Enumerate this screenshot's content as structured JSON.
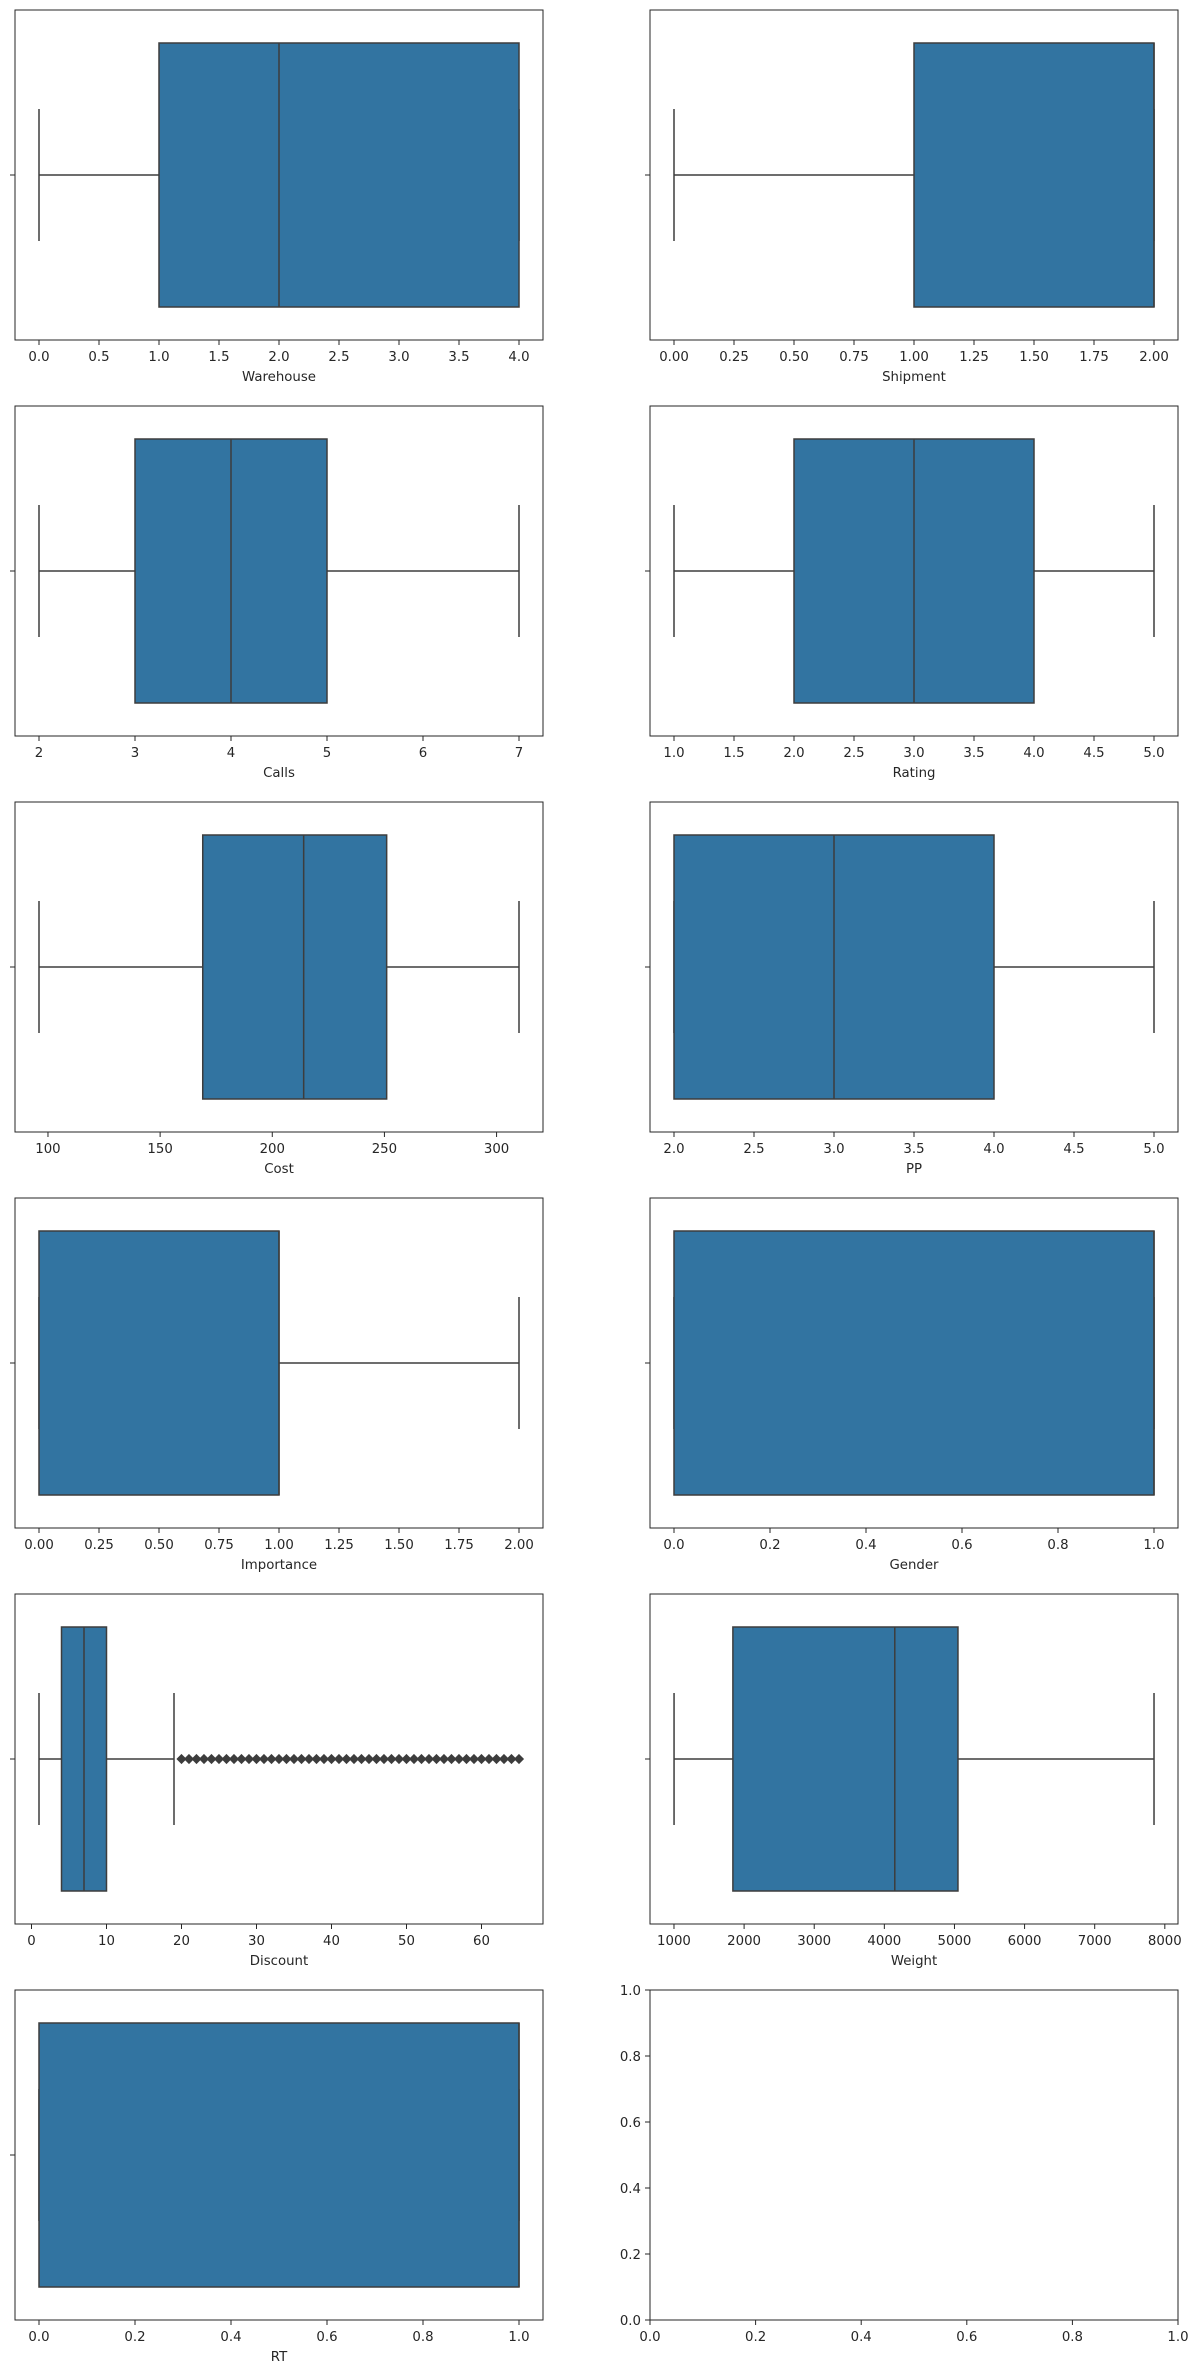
{
  "chart_data": [
    {
      "type": "box",
      "xlabel": "Warehouse",
      "xlim": [
        -0.2,
        4.2
      ],
      "ticks": [
        "0.0",
        "0.5",
        "1.0",
        "1.5",
        "2.0",
        "2.5",
        "3.0",
        "3.5",
        "4.0"
      ],
      "tick_values": [
        0,
        0.5,
        1,
        1.5,
        2,
        2.5,
        3,
        3.5,
        4
      ],
      "whisker_low": 0,
      "q1": 1,
      "median": 2,
      "q3": 4,
      "whisker_high": 4,
      "outliers": []
    },
    {
      "type": "box",
      "xlabel": "Shipment",
      "xlim": [
        -0.1,
        2.1
      ],
      "ticks": [
        "0.00",
        "0.25",
        "0.50",
        "0.75",
        "1.00",
        "1.25",
        "1.50",
        "1.75",
        "2.00"
      ],
      "tick_values": [
        0,
        0.25,
        0.5,
        0.75,
        1,
        1.25,
        1.5,
        1.75,
        2
      ],
      "whisker_low": 0,
      "q1": 1,
      "median": 2,
      "q3": 2,
      "whisker_high": 2,
      "outliers": []
    },
    {
      "type": "box",
      "xlabel": "Calls",
      "xlim": [
        1.75,
        7.25
      ],
      "ticks": [
        "2",
        "3",
        "4",
        "5",
        "6",
        "7"
      ],
      "tick_values": [
        2,
        3,
        4,
        5,
        6,
        7
      ],
      "whisker_low": 2,
      "q1": 3,
      "median": 4,
      "q3": 5,
      "whisker_high": 7,
      "outliers": []
    },
    {
      "type": "box",
      "xlabel": "Rating",
      "xlim": [
        0.8,
        5.2
      ],
      "ticks": [
        "1.0",
        "1.5",
        "2.0",
        "2.5",
        "3.0",
        "3.5",
        "4.0",
        "4.5",
        "5.0"
      ],
      "tick_values": [
        1,
        1.5,
        2,
        2.5,
        3,
        3.5,
        4,
        4.5,
        5
      ],
      "whisker_low": 1,
      "q1": 2,
      "median": 3,
      "q3": 4,
      "whisker_high": 5,
      "outliers": []
    },
    {
      "type": "box",
      "xlabel": "Cost",
      "xlim": [
        85.3,
        320.7
      ],
      "ticks": [
        "100",
        "150",
        "200",
        "250",
        "300"
      ],
      "tick_values": [
        100,
        150,
        200,
        250,
        300
      ],
      "whisker_low": 96,
      "q1": 169,
      "median": 214,
      "q3": 251,
      "whisker_high": 310,
      "outliers": []
    },
    {
      "type": "box",
      "xlabel": "PP",
      "xlim": [
        1.85,
        5.15
      ],
      "ticks": [
        "2.0",
        "2.5",
        "3.0",
        "3.5",
        "4.0",
        "4.5",
        "5.0"
      ],
      "tick_values": [
        2,
        2.5,
        3,
        3.5,
        4,
        4.5,
        5
      ],
      "whisker_low": 2,
      "q1": 2,
      "median": 3,
      "q3": 4,
      "whisker_high": 5,
      "outliers": []
    },
    {
      "type": "box",
      "xlabel": "Importance",
      "xlim": [
        -0.1,
        2.1
      ],
      "ticks": [
        "0.00",
        "0.25",
        "0.50",
        "0.75",
        "1.00",
        "1.25",
        "1.50",
        "1.75",
        "2.00"
      ],
      "tick_values": [
        0,
        0.25,
        0.5,
        0.75,
        1,
        1.25,
        1.5,
        1.75,
        2
      ],
      "whisker_low": 0,
      "q1": 0,
      "median": 1,
      "q3": 1,
      "whisker_high": 2,
      "outliers": []
    },
    {
      "type": "box",
      "xlabel": "Gender",
      "xlim": [
        -0.05,
        1.05
      ],
      "ticks": [
        "0.0",
        "0.2",
        "0.4",
        "0.6",
        "0.8",
        "1.0"
      ],
      "tick_values": [
        0,
        0.2,
        0.4,
        0.6,
        0.8,
        1
      ],
      "whisker_low": 0,
      "q1": 0,
      "median": 1,
      "q3": 1,
      "whisker_high": 1,
      "outliers": []
    },
    {
      "type": "box",
      "xlabel": "Discount",
      "xlim": [
        -2.2,
        68.2
      ],
      "ticks": [
        "0",
        "10",
        "20",
        "30",
        "40",
        "50",
        "60"
      ],
      "tick_values": [
        0,
        10,
        20,
        30,
        40,
        50,
        60
      ],
      "whisker_low": 1,
      "q1": 4,
      "median": 7,
      "q3": 10,
      "whisker_high": 19,
      "outliers": [
        20,
        21,
        22,
        23,
        24,
        25,
        26,
        27,
        28,
        29,
        30,
        31,
        32,
        33,
        34,
        35,
        36,
        37,
        38,
        39,
        40,
        41,
        42,
        43,
        44,
        45,
        46,
        47,
        48,
        49,
        50,
        51,
        52,
        53,
        54,
        55,
        56,
        57,
        58,
        59,
        60,
        61,
        62,
        63,
        64,
        65
      ]
    },
    {
      "type": "box",
      "xlabel": "Weight",
      "xlim": [
        658,
        8188
      ],
      "ticks": [
        "1000",
        "2000",
        "3000",
        "4000",
        "5000",
        "6000",
        "7000",
        "8000"
      ],
      "tick_values": [
        1000,
        2000,
        3000,
        4000,
        5000,
        6000,
        7000,
        8000
      ],
      "whisker_low": 1001,
      "q1": 1840,
      "median": 4149,
      "q3": 5050,
      "whisker_high": 7846,
      "outliers": []
    },
    {
      "type": "box",
      "xlabel": "RT",
      "xlim": [
        -0.05,
        1.05
      ],
      "ticks": [
        "0.0",
        "0.2",
        "0.4",
        "0.6",
        "0.8",
        "1.0"
      ],
      "tick_values": [
        0,
        0.2,
        0.4,
        0.6,
        0.8,
        1
      ],
      "whisker_low": 0,
      "q1": 0,
      "median": 1,
      "q3": 1,
      "whisker_high": 1,
      "outliers": []
    },
    {
      "type": "empty",
      "xlabel": "",
      "xlim": [
        0,
        1
      ],
      "ylim": [
        0,
        1
      ],
      "ticks": [
        "0.0",
        "0.2",
        "0.4",
        "0.6",
        "0.8",
        "1.0"
      ],
      "tick_values": [
        0,
        0.2,
        0.4,
        0.6,
        0.8,
        1
      ],
      "yticks": [
        "0.0",
        "0.2",
        "0.4",
        "0.6",
        "0.8",
        "1.0"
      ],
      "ytick_values": [
        0,
        0.2,
        0.4,
        0.6,
        0.8,
        1
      ]
    }
  ],
  "colors": {
    "box_fill": "#3274a1",
    "line": "#3d3d3d",
    "axes": "#262626",
    "background": "#ffffff"
  }
}
